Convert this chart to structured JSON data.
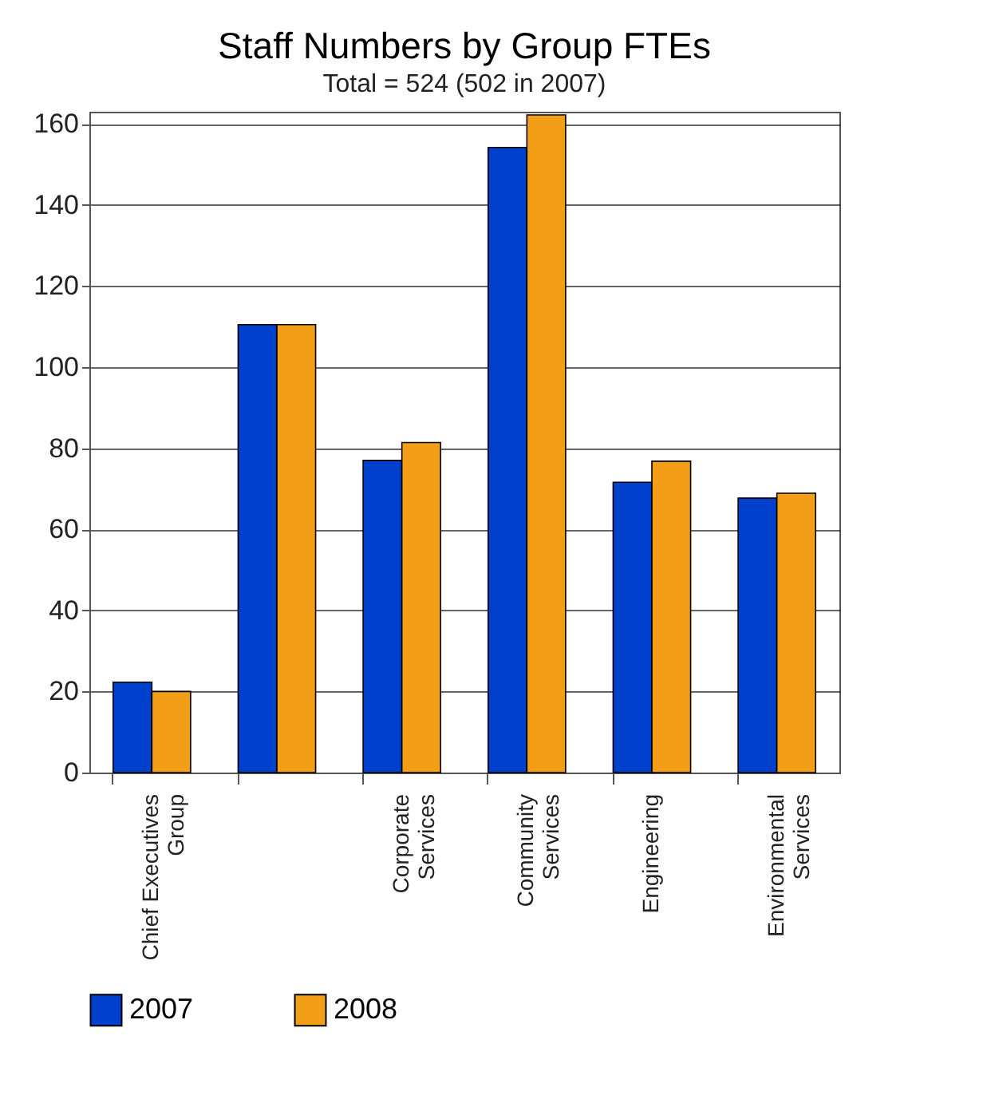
{
  "chart_data": {
    "type": "bar",
    "title": "Staff Numbers by Group FTEs",
    "subtitle": "Total = 524 (502 in 2007)",
    "categories": [
      "Chief Executives Group",
      null,
      "Corporate Services",
      "Community Services",
      "Engineering",
      "Environmental Services"
    ],
    "series": [
      {
        "name": "2007",
        "color": "#0040cc",
        "values": [
          22.3,
          110.5,
          77,
          154.2,
          71.6,
          67.7
        ]
      },
      {
        "name": "2008",
        "color": "#f29e16",
        "values": [
          20,
          110.5,
          81.4,
          162.2,
          76.8,
          68.9
        ]
      }
    ],
    "ylim": [
      0,
      163
    ],
    "yticks": [
      0,
      20,
      40,
      60,
      80,
      100,
      120,
      140,
      160
    ],
    "grid": "y",
    "legend": "bottom"
  }
}
